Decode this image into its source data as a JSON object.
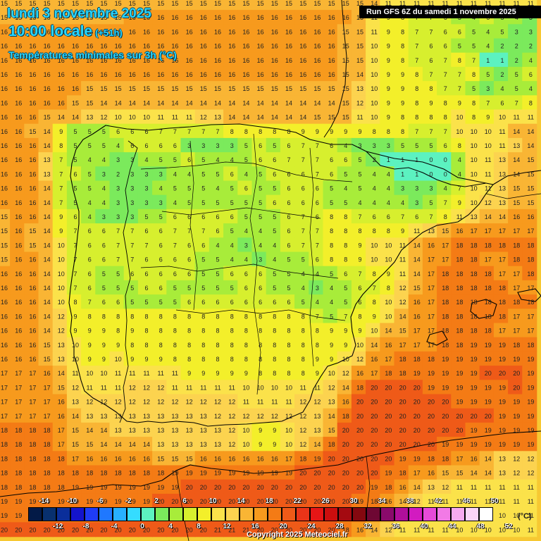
{
  "header": {
    "date": "lundi 3 novembre 2025",
    "time": "10:00 locale",
    "lead": "(+51h)",
    "subtitle": "Températures minimales sur 3h (°C)",
    "run": "Run GFS 6Z du samedi 1 novembre 2025"
  },
  "footer": {
    "copyright": "Copyright 2025 Meteociel.fr",
    "unit": "(°C)"
  },
  "legend": {
    "top_labels": [
      "-14",
      "-10",
      "-6",
      "-2",
      "2",
      "6",
      "10",
      "14",
      "18",
      "22",
      "26",
      "30",
      "34",
      "38",
      "42",
      "46",
      "50"
    ],
    "bottom_labels": [
      "-12",
      "-8",
      "-4",
      "0",
      "4",
      "8",
      "12",
      "16",
      "20",
      "24",
      "28",
      "32",
      "36",
      "40",
      "44",
      "48",
      "52"
    ],
    "colors": [
      "#031a47",
      "#08306e",
      "#0a2e9a",
      "#1414cc",
      "#1f3cf5",
      "#1f78ff",
      "#28b0ff",
      "#35dcff",
      "#5cf2c0",
      "#7bea5c",
      "#a8ec3a",
      "#d7ef2e",
      "#f3ef2a",
      "#fbe24a",
      "#fcd34f",
      "#f9b534",
      "#f79a1d",
      "#f47b15",
      "#ef5a18",
      "#ea3418",
      "#e61616",
      "#cc0e0e",
      "#a40a10",
      "#84080f",
      "#6e0733",
      "#8a0a6b",
      "#b00f9a",
      "#d21bc0",
      "#e64ad8",
      "#f27ae6",
      "#f7aaf0",
      "#fbd6f8",
      "#ffffff"
    ]
  },
  "icons": {
    "map": "temperature-map"
  },
  "grid": [
    "15 15 15 15 15 15 15 15 15 15 15 15 15 15 15 15 15 15 15 15 15 15 15 15 15 15 14 11 11 11 11 11 11 11 11 11 11 11",
    "15 15 15 15 15 15 15 15 15 16 16 16 16 16 16 16 16 16 16 16 16 16 16 16 16 15 11 9 8 7 7 6 5 4 6 5 4 3",
    "16 16 16 16 16 16 16 16 16 16 16 16 16 16 16 16 16 16 16 16 16 16 16 16 15 15 11 9 8 7 7 6 6 5 4 5 3 3",
    "16 16 16 16 16 16 16 16 16 16 16 16 16 16 16 16 16 16 16 16 16 16 16 16 15 15 10 9 8 7 6 6 5 5 4 2 2 2",
    "16 16 16 16 16 16 16 16 16 16 16 16 16 16 16 16 16 16 16 16 16 16 16 16 15 15 10 9 8 7 6 7 8 7 1 1 2 4",
    "16 16 16 16 16 16 16 16 16 16 16 16 16 16 16 16 16 16 16 16 16 16 16 16 15 14 10 9 9 8 7 7 7 8 5 2 5 6",
    "16 16 16 16 16 16 15 15 15 15 15 15 15 15 15 15 15 15 15 15 15 15 15 15 15 13 10 9 9 8 8 7 7 5 3 4 5 4",
    "16 16 16 16 16 15 15 14 14 14 14 14 14 14 14 14 14 14 14 14 14 14 14 14 15 12 10 9 9 8 9 8 9 8 7 6 7 8",
    "16 16 16 15 14 14 13 12 10 10 10 11 11 11 12 13 14 14 14 14 14 14 15 15 15 11 10 9 8 8 8 8 10 8 9 10 11 11",
    "16 16 15 14 9 5 5 5 6 6 6 7 7 7 7 7 8 8 8 8 8 9 9 9 9 9 8 8 8 7 7 7 10 10 10 11 14 14",
    "16 16 16 14 8 5 5 5 4 6 6 6 6 3 3 3 3 5 6 5 6 7 7 6 4 3 3 3 5 5 5 6 8 10 10 11 13 14",
    "16 16 16 13 7 5 4 4 3 3 4 5 5 6 5 4 4 5 6 6 7 7 7 6 6 5 2 1 1 1 0 0 4 10 11 13 14 15",
    "16 16 16 13 7 6 5 3 2 3 3 3 4 4 5 5 6 4 5 6 6 6 7 6 5 5 4 4 1 1 0 0 4 10 11 13 14 15",
    "16 16 16 14 7 5 5 4 3 3 3 4 5 5 5 4 5 6 5 5 6 6 6 5 4 5 4 4 3 3 3 4 7 10 11 13 15 15",
    "16 16 16 14 7 5 4 4 3 3 3 3 4 5 5 5 5 5 5 6 6 6 6 5 5 4 4 4 4 3 5 7 9 10 12 13 15 15",
    "15 16 16 14 9 6 4 3 3 3 5 5 6 6 6 6 6 5 5 5 6 7 6 8 8 7 6 6 7 6 7 8 11 13 14 14 16 16",
    "15 16 15 14 9 7 6 6 7 7 6 6 7 7 7 6 5 4 4 5 6 7 7 8 8 8 8 8 9 11 13 15 16 17 17 17 17 17",
    "15 16 15 14 10 7 6 6 7 7 7 6 7 6 6 4 4 3 4 4 6 7 7 8 8 9 10 10 11 14 16 17 18 18 18 18 18 18",
    "15 16 16 14 10 7 6 6 7 7 6 6 6 6 5 5 4 4 3 4 5 5 6 8 8 9 10 10 11 14 17 17 18 18 17 17 18 18",
    "16 16 16 14 10 7 6 5 5 6 6 6 6 6 5 5 6 6 6 5 5 4 4 5 6 7 8 9 11 14 17 18 18 18 18 17 17 18",
    "16 16 16 14 10 7 6 5 5 5 6 6 5 5 5 5 5 6 6 5 5 4 3 4 5 6 7 8 12 15 17 18 18 18 18 18 17 17",
    "16 16 16 14 10 8 7 6 6 5 5 5 5 6 6 6 6 6 6 6 6 5 4 4 5 6 8 10 12 16 17 18 18 18 18 18 18 18",
    "16 16 16 14 12 9 8 8 8 8 8 8 8 8 8 8 8 8 8 8 8 8 7 5 7 8 9 10 14 16 17 18 18 18 18 18 17 17",
    "16 16 16 14 12 9 9 9 8 9 8 8 8 8 8 8 8 8 8 8 8 8 8 9 9 9 10 14 15 17 17 18 18 18 18 17 17 17",
    "16 16 16 15 13 10 9 9 9 8 8 8 8 8 8 8 8 8 8 8 8 8 8 9 9 10 14 16 17 17 17 18 18 19 19 19 18 18",
    "16 16 16 15 13 10 9 9 10 9 9 9 8 8 8 8 8 8 8 8 8 8 9 9 10 12 16 17 18 18 18 19 19 19 19 19 19 19",
    "17 17 17 16 14 11 10 10 11 11 11 11 11 9 9 9 9 9 8 8 8 8 9 10 12 16 17 18 18 19 19 19 19 19 20 20 20 19",
    "17 17 17 17 15 12 11 11 11 12 12 12 11 11 11 11 11 10 10 10 10 11 11 12 14 18 20 20 20 20 19 19 19 19 19 19 20 19",
    "17 17 17 17 16 13 12 12 12 12 12 12 12 12 12 12 12 11 11 11 11 12 12 13 16 20 20 20 20 20 20 20 19 19 19 19 19 19",
    "17 17 17 17 16 14 13 13 13 13 13 13 13 13 13 12 12 12 12 12 12 12 13 14 18 20 20 20 20 20 20 20 20 20 20 19 19 19",
    "18 18 18 18 17 15 14 14 13 13 13 13 13 13 13 13 12 10 9 9 10 12 13 15 20 20 20 20 20 20 20 20 20 19 19 19 19 19",
    "18 18 18 18 17 15 15 14 14 14 14 13 13 13 13 13 12 10 9 9 10 12 14 18 20 20 20 20 20 20 20 19 19 19 19 19 19 19",
    "18 18 18 18 18 17 16 16 16 16 16 15 15 15 16 16 16 16 16 16 17 18 19 20 20 20 20 20 19 19 18 18 17 16 14 13 12 12",
    "18 18 18 18 18 18 18 18 18 18 18 18 19 19 19 19 19 19 19 19 19 20 20 20 20 20 20 19 18 17 16 15 15 14 14 13 12 12",
    "18 18 18 18 18 19 19 19 19 19 19 19 19 20 20 20 20 20 20 20 20 20 20 20 20 20 19 18 16 14 13 12 11 11 11 11 11 11",
    "19 19 19 19 19 19 19 19 19 19 19 20 20 20 20 20 20 20 20 20 20 20 20 20 20 19 18 16 14 12 11 11 11 11 11 11 11 11",
    "19 19 19 19 19 19 19 19 20 20 20 20 20 21 21 21 20 20 20 20 20 20 20 20 19 18 16 14 12 11 11 11 11 11 10 10 10 11",
    "20 20 20 20 20 20 20 20 20 20 20 20 20 20 20 21 21 21 20 20 20 20 20 20 18 16 14 12 11 11 11 11 10 10 10 10 10 11"
  ]
}
